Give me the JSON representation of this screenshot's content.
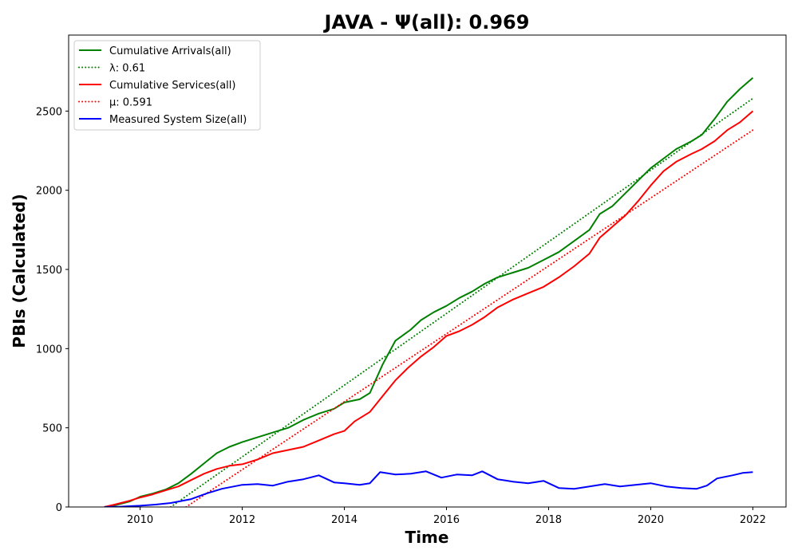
{
  "chart_data": {
    "type": "line",
    "title": "JAVA -  Ψ(all): 0.969",
    "xlabel": "Time",
    "ylabel": "PBIs (Calculated)",
    "xlim": [
      2008.6,
      2022.65
    ],
    "ylim": [
      0,
      2980
    ],
    "xticks": [
      2010,
      2012,
      2014,
      2016,
      2018,
      2020,
      2022
    ],
    "yticks": [
      0,
      500,
      1000,
      1500,
      2000,
      2500
    ],
    "grid": false,
    "legend_position": "upper-left",
    "series": [
      {
        "name": "Cumulative Arrivals(all)",
        "color": "#008000",
        "style": "solid",
        "x": [
          2009.3,
          2009.5,
          2009.8,
          2010.0,
          2010.25,
          2010.5,
          2010.75,
          2011.0,
          2011.25,
          2011.5,
          2011.75,
          2012.0,
          2012.3,
          2012.6,
          2012.9,
          2013.2,
          2013.5,
          2013.8,
          2014.0,
          2014.3,
          2014.5,
          2014.75,
          2015.0,
          2015.3,
          2015.5,
          2015.75,
          2016.0,
          2016.25,
          2016.5,
          2016.75,
          2017.0,
          2017.3,
          2017.6,
          2017.9,
          2018.2,
          2018.5,
          2018.8,
          2019.0,
          2019.25,
          2019.5,
          2019.75,
          2020.0,
          2020.25,
          2020.5,
          2020.8,
          2021.0,
          2021.25,
          2021.5,
          2021.75,
          2022.0
        ],
        "y": [
          0,
          10,
          35,
          65,
          85,
          110,
          150,
          210,
          275,
          340,
          380,
          410,
          440,
          470,
          500,
          550,
          590,
          620,
          660,
          680,
          720,
          900,
          1050,
          1120,
          1180,
          1230,
          1270,
          1320,
          1360,
          1410,
          1450,
          1480,
          1510,
          1560,
          1610,
          1680,
          1750,
          1850,
          1900,
          1980,
          2060,
          2140,
          2200,
          2260,
          2310,
          2350,
          2450,
          2560,
          2640,
          2710
        ]
      },
      {
        "name": "λ: 0.61",
        "color": "#008000",
        "style": "dotted",
        "x": [
          2010.6,
          2022.0
        ],
        "y": [
          0,
          2580
        ]
      },
      {
        "name": "Cumulative Services(all)",
        "color": "#ff0000",
        "style": "solid",
        "x": [
          2009.3,
          2009.5,
          2009.8,
          2010.0,
          2010.25,
          2010.5,
          2010.75,
          2011.0,
          2011.25,
          2011.5,
          2011.75,
          2012.0,
          2012.3,
          2012.6,
          2012.9,
          2013.2,
          2013.5,
          2013.8,
          2014.0,
          2014.2,
          2014.5,
          2014.75,
          2015.0,
          2015.25,
          2015.5,
          2015.75,
          2016.0,
          2016.25,
          2016.5,
          2016.75,
          2017.0,
          2017.3,
          2017.6,
          2017.9,
          2018.2,
          2018.5,
          2018.8,
          2019.0,
          2019.25,
          2019.5,
          2019.75,
          2020.0,
          2020.25,
          2020.5,
          2020.8,
          2021.0,
          2021.25,
          2021.5,
          2021.75,
          2022.0
        ],
        "y": [
          0,
          15,
          40,
          60,
          80,
          105,
          130,
          170,
          210,
          240,
          260,
          270,
          300,
          340,
          360,
          380,
          420,
          460,
          480,
          540,
          600,
          700,
          800,
          880,
          950,
          1010,
          1080,
          1110,
          1150,
          1200,
          1260,
          1310,
          1350,
          1390,
          1450,
          1520,
          1600,
          1700,
          1770,
          1840,
          1930,
          2030,
          2120,
          2180,
          2230,
          2260,
          2310,
          2380,
          2430,
          2500
        ]
      },
      {
        "name": "μ: 0.591",
        "color": "#ff0000",
        "style": "dotted",
        "x": [
          2010.9,
          2022.0
        ],
        "y": [
          0,
          2380
        ]
      },
      {
        "name": "Measured System Size(all)",
        "color": "#0000ff",
        "style": "solid",
        "x": [
          2009.3,
          2009.6,
          2010.0,
          2010.3,
          2010.6,
          2011.0,
          2011.3,
          2011.6,
          2012.0,
          2012.3,
          2012.6,
          2012.9,
          2013.2,
          2013.5,
          2013.8,
          2014.0,
          2014.3,
          2014.5,
          2014.7,
          2015.0,
          2015.3,
          2015.6,
          2015.9,
          2016.2,
          2016.5,
          2016.7,
          2017.0,
          2017.3,
          2017.6,
          2017.9,
          2018.2,
          2018.5,
          2018.8,
          2019.1,
          2019.4,
          2019.7,
          2020.0,
          2020.3,
          2020.6,
          2020.9,
          2021.1,
          2021.3,
          2021.6,
          2021.8,
          2022.0
        ],
        "y": [
          0,
          2,
          8,
          15,
          25,
          50,
          85,
          115,
          140,
          145,
          135,
          160,
          175,
          200,
          155,
          150,
          140,
          150,
          220,
          205,
          210,
          225,
          185,
          205,
          200,
          225,
          175,
          160,
          150,
          165,
          120,
          115,
          130,
          145,
          130,
          140,
          150,
          130,
          120,
          115,
          135,
          180,
          200,
          215,
          220
        ]
      }
    ]
  }
}
